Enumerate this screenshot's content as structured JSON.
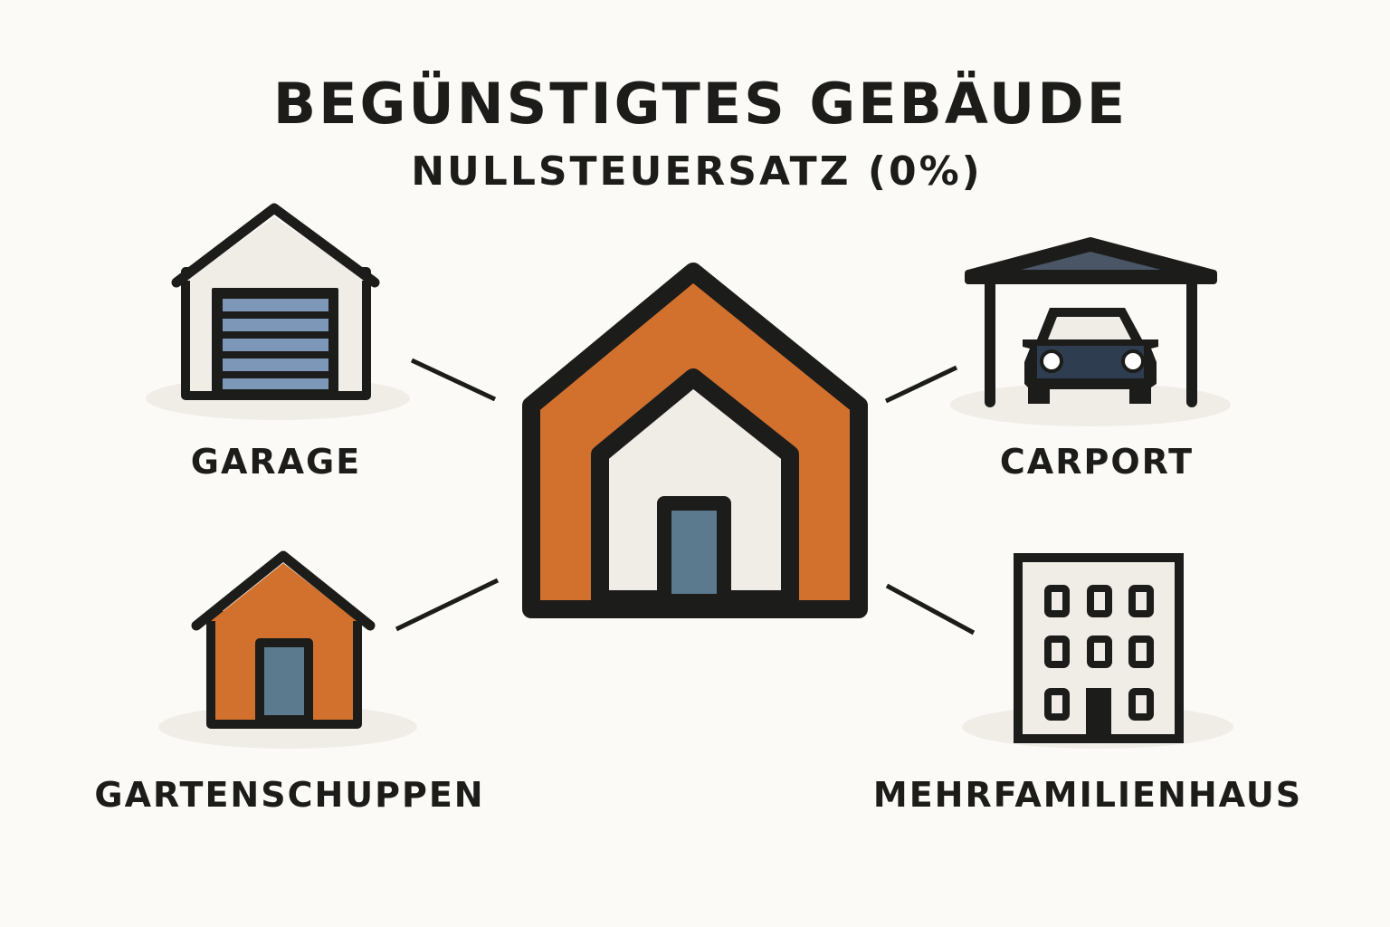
{
  "title": "BEGÜNSTIGTES GEBÄUDE",
  "subtitle": "NULLSTEUERSATZ (0%)",
  "items": [
    {
      "label": "GARAGE",
      "icon": "garage-icon"
    },
    {
      "label": "CARPORT",
      "icon": "carport-icon"
    },
    {
      "label": "GARTENSCHUPPEN",
      "icon": "shed-icon"
    },
    {
      "label": "MEHRFAMILIENHAUS",
      "icon": "apartment-building-icon"
    }
  ],
  "center_icon": "house-icon",
  "colors": {
    "background": "#FBFAF7",
    "outline": "#1C1C1A",
    "orange": "#D2712E",
    "blue_gray": "#5B7A8E",
    "cream": "#F0EDE6",
    "slats": "#7C97B8",
    "car": "#2E3D50"
  }
}
